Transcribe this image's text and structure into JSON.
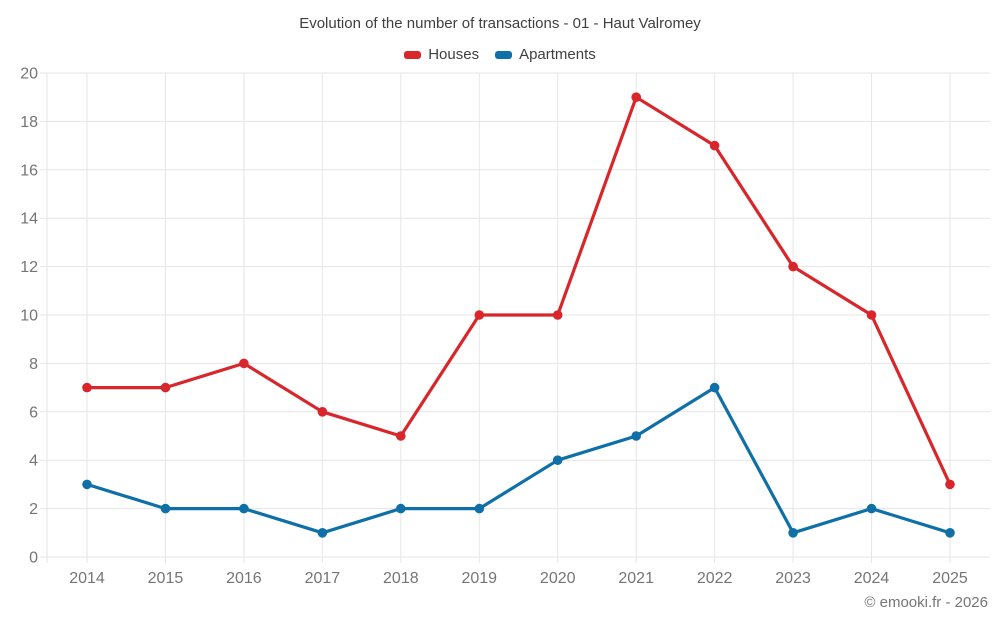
{
  "title": "Evolution of the number of transactions - 01 - Haut Valromey",
  "legend": {
    "items": [
      {
        "label": "Houses",
        "color": "#d8262a"
      },
      {
        "label": "Apartments",
        "color": "#0f70a8"
      }
    ]
  },
  "footer": {
    "copyright": "© emooki.fr - 2026"
  },
  "chart_data": {
    "type": "line",
    "title": "Evolution of the number of transactions - 01 - Haut Valromey",
    "categories": [
      "2014",
      "2015",
      "2016",
      "2017",
      "2018",
      "2019",
      "2020",
      "2021",
      "2022",
      "2023",
      "2024",
      "2025"
    ],
    "series": [
      {
        "name": "Houses",
        "color": "#d8262a",
        "values": [
          7,
          7,
          8,
          6,
          5,
          10,
          10,
          19,
          17,
          12,
          10,
          3
        ]
      },
      {
        "name": "Apartments",
        "color": "#0f70a8",
        "values": [
          3,
          2,
          2,
          1,
          2,
          2,
          4,
          5,
          7,
          1,
          2,
          1
        ]
      }
    ],
    "xlabel": "",
    "ylabel": "",
    "ylim": [
      0,
      20
    ],
    "ytick_step": 2,
    "grid": true,
    "legend_position": "top",
    "style": {
      "grid_color": "#e6e6e6",
      "tick_label_color": "#757575",
      "title_color": "#3f3f3f",
      "background": "#ffffff"
    }
  }
}
